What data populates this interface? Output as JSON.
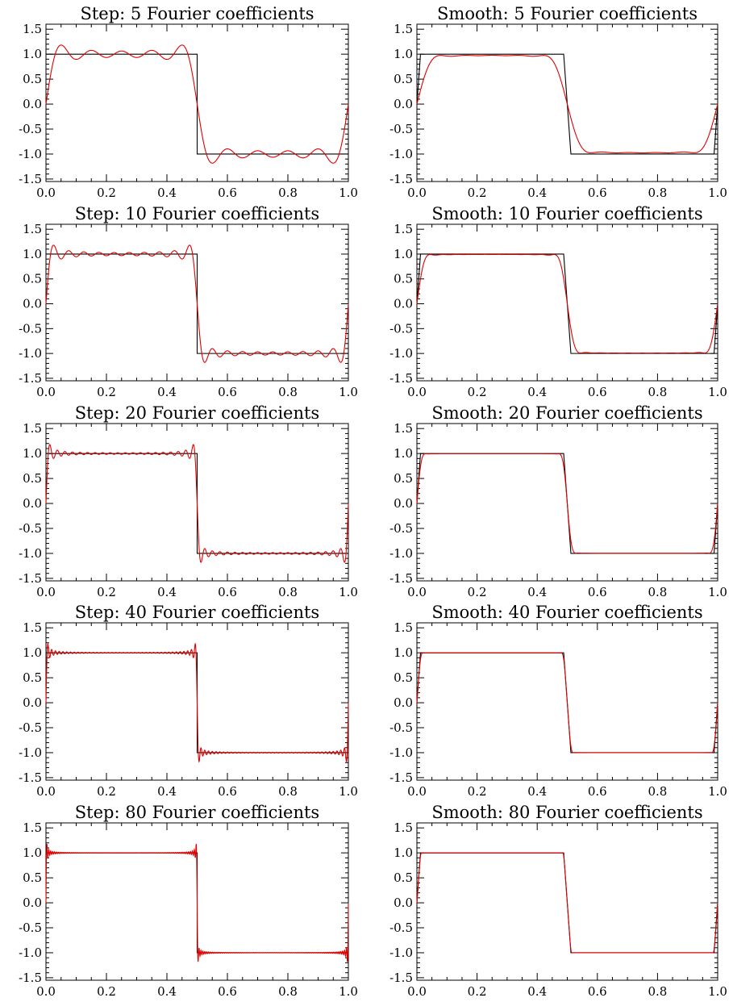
{
  "figure": {
    "background": "#ffffff",
    "truth_color": "#000000",
    "approx_color": "#e00000"
  },
  "chart_data": [
    {
      "type": "line",
      "title": "Step: 5 Fourier coefficients",
      "method": "step",
      "n_coeff": 5,
      "xlim": [
        0,
        1
      ],
      "ylim": [
        -1.55,
        1.6
      ],
      "x_ticks": [
        "0.0",
        "0.2",
        "0.4",
        "0.6",
        "0.8",
        "1.0"
      ],
      "y_ticks": [
        "-1.5",
        "-1.0",
        "-0.5",
        "0.0",
        "0.5",
        "1.0",
        "1.5"
      ]
    },
    {
      "type": "line",
      "title": "Smooth: 5 Fourier coefficients",
      "method": "smooth",
      "n_coeff": 5,
      "xlim": [
        0,
        1
      ],
      "ylim": [
        -1.55,
        1.6
      ],
      "x_ticks": [
        "0.0",
        "0.2",
        "0.4",
        "0.6",
        "0.8",
        "1.0"
      ],
      "y_ticks": [
        "-1.5",
        "-1.0",
        "-0.5",
        "0.0",
        "0.5",
        "1.0",
        "1.5"
      ]
    },
    {
      "type": "line",
      "title": "Step: 10 Fourier coefficients",
      "method": "step",
      "n_coeff": 10,
      "xlim": [
        0,
        1
      ],
      "ylim": [
        -1.55,
        1.6
      ],
      "x_ticks": [
        "0.0",
        "0.2",
        "0.4",
        "0.6",
        "0.8",
        "1.0"
      ],
      "y_ticks": [
        "-1.5",
        "-1.0",
        "-0.5",
        "0.0",
        "0.5",
        "1.0",
        "1.5"
      ]
    },
    {
      "type": "line",
      "title": "Smooth: 10 Fourier coefficients",
      "method": "smooth",
      "n_coeff": 10,
      "xlim": [
        0,
        1
      ],
      "ylim": [
        -1.55,
        1.6
      ],
      "x_ticks": [
        "0.0",
        "0.2",
        "0.4",
        "0.6",
        "0.8",
        "1.0"
      ],
      "y_ticks": [
        "-1.5",
        "-1.0",
        "-0.5",
        "0.0",
        "0.5",
        "1.0",
        "1.5"
      ]
    },
    {
      "type": "line",
      "title": "Step: 20 Fourier coefficients",
      "method": "step",
      "n_coeff": 20,
      "xlim": [
        0,
        1
      ],
      "ylim": [
        -1.55,
        1.6
      ],
      "x_ticks": [
        "0.0",
        "0.2",
        "0.4",
        "0.6",
        "0.8",
        "1.0"
      ],
      "y_ticks": [
        "-1.5",
        "-1.0",
        "-0.5",
        "0.0",
        "0.5",
        "1.0",
        "1.5"
      ]
    },
    {
      "type": "line",
      "title": "Smooth: 20 Fourier coefficients",
      "method": "smooth",
      "n_coeff": 20,
      "xlim": [
        0,
        1
      ],
      "ylim": [
        -1.55,
        1.6
      ],
      "x_ticks": [
        "0.0",
        "0.2",
        "0.4",
        "0.6",
        "0.8",
        "1.0"
      ],
      "y_ticks": [
        "-1.5",
        "-1.0",
        "-0.5",
        "0.0",
        "0.5",
        "1.0",
        "1.5"
      ]
    },
    {
      "type": "line",
      "title": "Step: 40 Fourier coefficients",
      "method": "step",
      "n_coeff": 40,
      "xlim": [
        0,
        1
      ],
      "ylim": [
        -1.55,
        1.6
      ],
      "x_ticks": [
        "0.0",
        "0.2",
        "0.4",
        "0.6",
        "0.8",
        "1.0"
      ],
      "y_ticks": [
        "-1.5",
        "-1.0",
        "-0.5",
        "0.0",
        "0.5",
        "1.0",
        "1.5"
      ]
    },
    {
      "type": "line",
      "title": "Smooth: 40 Fourier coefficients",
      "method": "smooth",
      "n_coeff": 40,
      "xlim": [
        0,
        1
      ],
      "ylim": [
        -1.55,
        1.6
      ],
      "x_ticks": [
        "0.0",
        "0.2",
        "0.4",
        "0.6",
        "0.8",
        "1.0"
      ],
      "y_ticks": [
        "-1.5",
        "-1.0",
        "-0.5",
        "0.0",
        "0.5",
        "1.0",
        "1.5"
      ]
    },
    {
      "type": "line",
      "title": "Step: 80 Fourier coefficients",
      "method": "step",
      "n_coeff": 80,
      "xlim": [
        0,
        1
      ],
      "ylim": [
        -1.55,
        1.6
      ],
      "x_ticks": [
        "0.0",
        "0.2",
        "0.4",
        "0.6",
        "0.8",
        "1.0"
      ],
      "y_ticks": [
        "-1.5",
        "-1.0",
        "-0.5",
        "0.0",
        "0.5",
        "1.0",
        "1.5"
      ]
    },
    {
      "type": "line",
      "title": "Smooth: 80 Fourier coefficients",
      "method": "smooth",
      "n_coeff": 80,
      "xlim": [
        0,
        1
      ],
      "ylim": [
        -1.55,
        1.6
      ],
      "x_ticks": [
        "0.0",
        "0.2",
        "0.4",
        "0.6",
        "0.8",
        "1.0"
      ],
      "y_ticks": [
        "-1.5",
        "-1.0",
        "-0.5",
        "0.0",
        "0.5",
        "1.0",
        "1.5"
      ]
    }
  ]
}
